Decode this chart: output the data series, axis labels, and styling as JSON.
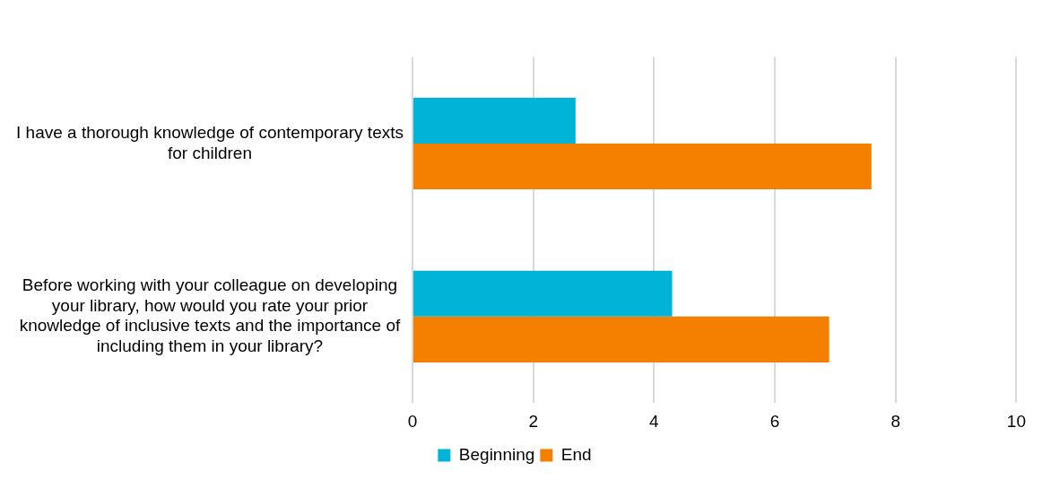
{
  "chart_data": {
    "type": "bar",
    "orientation": "horizontal",
    "categories": [
      "I have a thorough knowledge of contemporary texts for children",
      "Before working with your colleague on developing your library, how would you rate your prior knowledge of inclusive texts and the importance of including them in your library?"
    ],
    "series": [
      {
        "name": "Beginning",
        "color": "#00b4d8",
        "values": [
          2.7,
          4.3
        ]
      },
      {
        "name": "End",
        "color": "#f58000",
        "values": [
          7.6,
          6.9
        ]
      }
    ],
    "xlim": [
      0,
      10
    ],
    "xticks": [
      0,
      2,
      4,
      6,
      8,
      10
    ],
    "grid": "x",
    "legend": "bottom"
  }
}
